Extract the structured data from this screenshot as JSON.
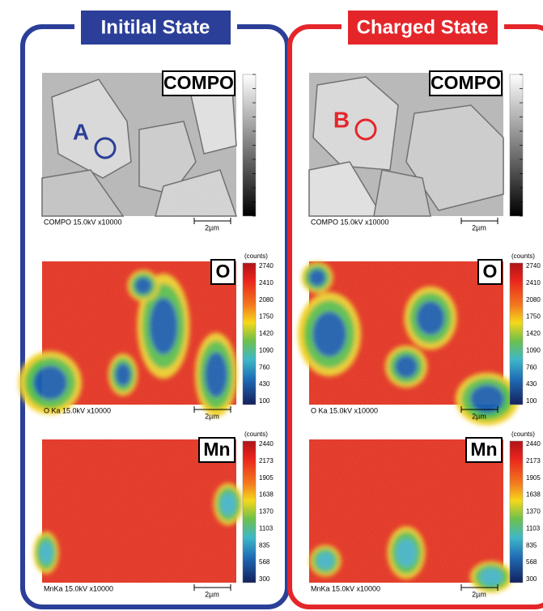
{
  "panels": [
    {
      "title": "Initilal State",
      "rows": [
        {
          "label": "COMPO",
          "marker": "A",
          "caption": "COMPO 15.0kV x10000",
          "scale": "2µm"
        },
        {
          "label": "O",
          "caption": "O Ka 15.0kV x10000",
          "scale": "2µm",
          "colorbar": {
            "unit": "(counts)",
            "ticks": [
              2740,
              2410,
              2080,
              1750,
              1420,
              1090,
              760,
              430,
              100
            ]
          }
        },
        {
          "label": "Mn",
          "caption": "MnKa 15.0kV x10000",
          "scale": "2µm",
          "colorbar": {
            "unit": "(counts)",
            "ticks": [
              2440,
              2173,
              1905,
              1638,
              1370,
              1103,
              835,
              568,
              300
            ]
          }
        }
      ]
    },
    {
      "title": "Charged State",
      "rows": [
        {
          "label": "COMPO",
          "marker": "B",
          "caption": "COMPO 15.0kV x10000",
          "scale": "2µm"
        },
        {
          "label": "O",
          "caption": "O Ka 15.0kV x10000",
          "scale": "2µm",
          "colorbar": {
            "unit": "(counts)",
            "ticks": [
              2740,
              2410,
              2080,
              1750,
              1420,
              1090,
              760,
              430,
              100
            ]
          }
        },
        {
          "label": "Mn",
          "caption": "MnKa 15.0kV x10000",
          "scale": "2µm",
          "colorbar": {
            "unit": "(counts)",
            "ticks": [
              2440,
              2173,
              1905,
              1638,
              1370,
              1103,
              835,
              568,
              300
            ]
          }
        }
      ]
    }
  ]
}
